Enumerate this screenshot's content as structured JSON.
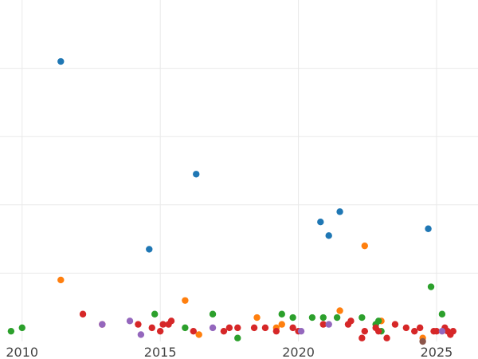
{
  "chart_data": {
    "type": "scatter",
    "title": "",
    "xlabel": "",
    "ylabel": "",
    "xlim": [
      2009.2,
      2026.5
    ],
    "ylim": [
      0,
      100
    ],
    "grid": true,
    "legend": "none",
    "x_ticks": [
      2010,
      2015,
      2020,
      2025
    ],
    "x_tick_labels": [
      "2010",
      "2015",
      "2020",
      "2025"
    ],
    "y_gridlines": [
      20,
      40,
      60,
      80
    ],
    "y_ticks_shown": false,
    "series": [
      {
        "color": "#1f77b4",
        "points": [
          [
            2011.4,
            82
          ],
          [
            2014.6,
            27
          ],
          [
            2016.3,
            49
          ],
          [
            2020.8,
            35
          ],
          [
            2021.1,
            31
          ],
          [
            2021.5,
            38
          ],
          [
            2024.7,
            33
          ]
        ]
      },
      {
        "color": "#ff7f0e",
        "points": [
          [
            2011.4,
            18
          ],
          [
            2015.9,
            12
          ],
          [
            2016.4,
            2
          ],
          [
            2018.5,
            7
          ],
          [
            2019.2,
            4
          ],
          [
            2019.4,
            5
          ],
          [
            2021.5,
            9
          ],
          [
            2022.4,
            28
          ],
          [
            2023.0,
            6
          ],
          [
            2024.5,
            1
          ]
        ]
      },
      {
        "color": "#2ca02c",
        "points": [
          [
            2009.6,
            3
          ],
          [
            2010.0,
            4
          ],
          [
            2014.8,
            8
          ],
          [
            2015.9,
            4
          ],
          [
            2016.9,
            8
          ],
          [
            2017.8,
            1
          ],
          [
            2019.4,
            8
          ],
          [
            2019.8,
            7
          ],
          [
            2020.5,
            7
          ],
          [
            2020.9,
            7
          ],
          [
            2021.4,
            7
          ],
          [
            2022.3,
            7
          ],
          [
            2022.8,
            5
          ],
          [
            2022.9,
            6
          ],
          [
            2023.0,
            3
          ],
          [
            2024.8,
            16
          ],
          [
            2025.2,
            8
          ]
        ]
      },
      {
        "color": "#d62728",
        "points": [
          [
            2012.2,
            8
          ],
          [
            2012.9,
            5
          ],
          [
            2014.2,
            5
          ],
          [
            2014.7,
            4
          ],
          [
            2015.0,
            3
          ],
          [
            2015.1,
            5
          ],
          [
            2015.3,
            5
          ],
          [
            2015.4,
            6
          ],
          [
            2016.2,
            3
          ],
          [
            2017.3,
            3
          ],
          [
            2017.5,
            4
          ],
          [
            2017.8,
            4
          ],
          [
            2018.4,
            4
          ],
          [
            2018.8,
            4
          ],
          [
            2019.2,
            3
          ],
          [
            2019.8,
            4
          ],
          [
            2020.0,
            3
          ],
          [
            2020.9,
            5
          ],
          [
            2021.8,
            5
          ],
          [
            2021.9,
            6
          ],
          [
            2022.3,
            1
          ],
          [
            2022.4,
            3
          ],
          [
            2022.8,
            4
          ],
          [
            2022.9,
            3
          ],
          [
            2023.2,
            1
          ],
          [
            2023.5,
            5
          ],
          [
            2023.9,
            4
          ],
          [
            2024.2,
            3
          ],
          [
            2024.4,
            4
          ],
          [
            2024.9,
            3
          ],
          [
            2025.0,
            3
          ],
          [
            2025.3,
            4
          ],
          [
            2025.4,
            3
          ],
          [
            2025.5,
            2
          ],
          [
            2025.6,
            3
          ]
        ]
      },
      {
        "color": "#9467bd",
        "points": [
          [
            2012.9,
            5
          ],
          [
            2013.9,
            6
          ],
          [
            2014.3,
            2
          ],
          [
            2016.9,
            4
          ],
          [
            2020.1,
            3
          ],
          [
            2021.1,
            5
          ],
          [
            2025.2,
            3
          ]
        ]
      },
      {
        "color": "#8c564b",
        "points": [
          [
            2024.5,
            0
          ]
        ]
      }
    ]
  }
}
